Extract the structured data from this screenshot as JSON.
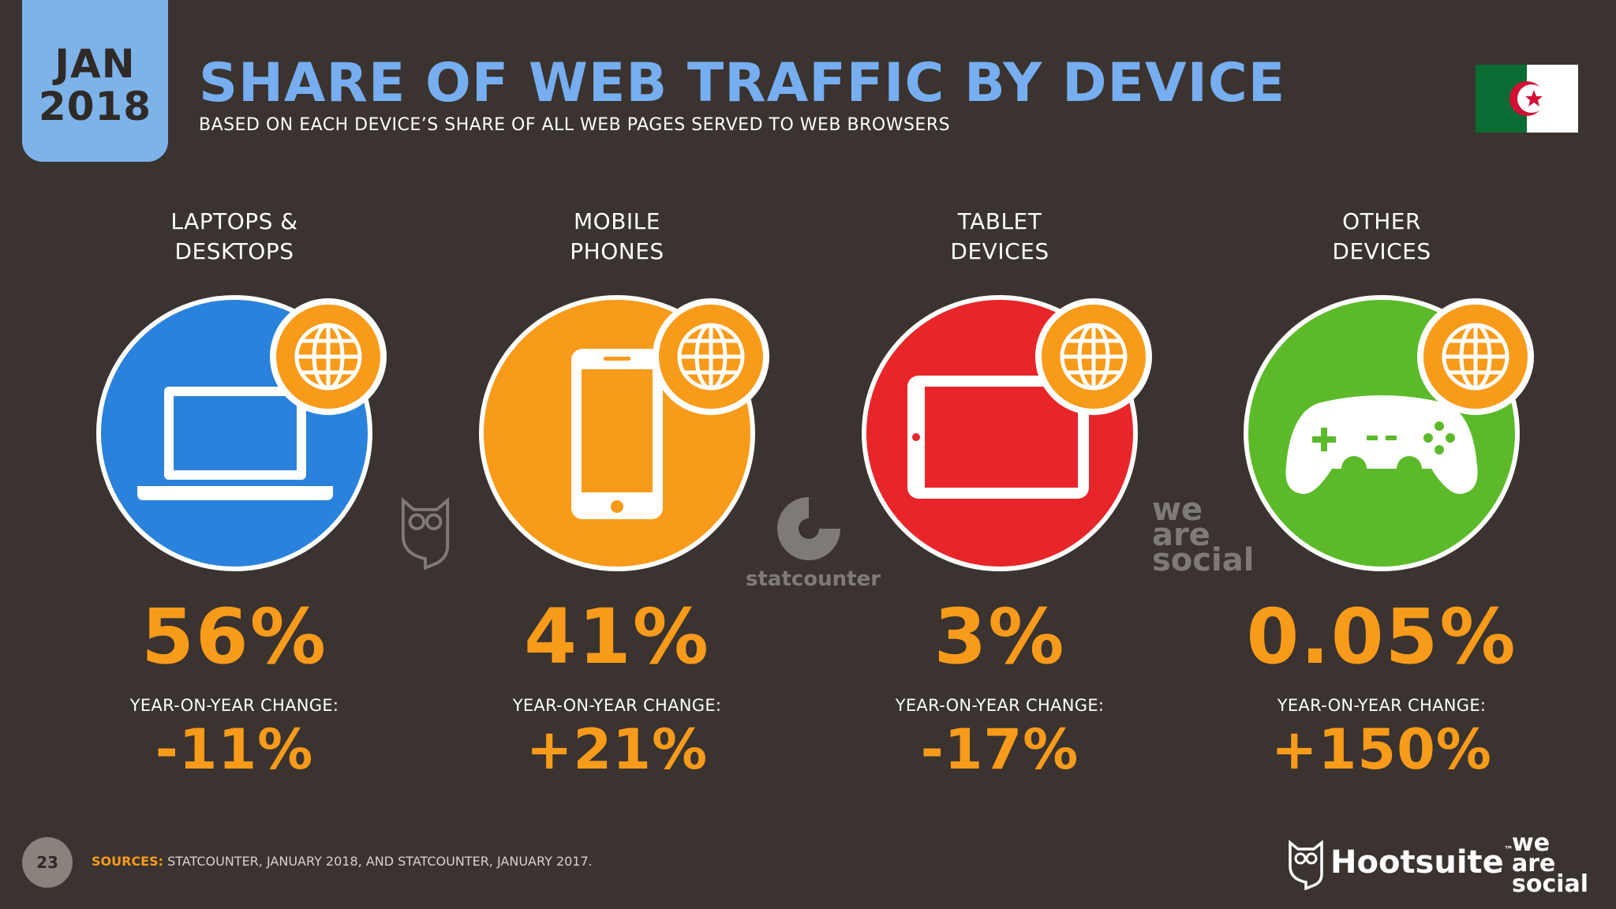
{
  "date_badge": {
    "month": "JAN",
    "year": "2018"
  },
  "header": {
    "title": "SHARE OF WEB TRAFFIC BY DEVICE",
    "subtitle": "BASED ON EACH DEVICE’S SHARE OF ALL WEB PAGES SERVED TO WEB BROWSERS",
    "flag": "algeria-flag-icon"
  },
  "colors": {
    "background": "#3a3330",
    "title": "#76aef0",
    "value": "#f89b1a",
    "laptop": "#2a82dc",
    "mobile": "#f89b1a",
    "tablet": "#e8262a",
    "other": "#5cba2a"
  },
  "devices": [
    {
      "label_line1": "LAPTOPS &",
      "label_line2": "DESKTOPS",
      "icon": "laptop-icon",
      "share": "56%",
      "yoy_label": "YEAR-ON-YEAR CHANGE:",
      "yoy": "-11%"
    },
    {
      "label_line1": "MOBILE",
      "label_line2": "PHONES",
      "icon": "mobile-phone-icon",
      "share": "41%",
      "yoy_label": "YEAR-ON-YEAR CHANGE:",
      "yoy": "+21%"
    },
    {
      "label_line1": "TABLET",
      "label_line2": "DEVICES",
      "icon": "tablet-icon",
      "share": "3%",
      "yoy_label": "YEAR-ON-YEAR CHANGE:",
      "yoy": "-17%"
    },
    {
      "label_line1": "OTHER",
      "label_line2": "DEVICES",
      "icon": "game-controller-icon",
      "share": "0.05%",
      "yoy_label": "YEAR-ON-YEAR CHANGE:",
      "yoy": "+150%"
    }
  ],
  "watermarks": {
    "statcounter": "statcounter",
    "we": "we",
    "are": "are",
    "social": "social"
  },
  "footer": {
    "page_number": "23",
    "sources_label": "SOURCES:",
    "sources_text": " STATCOUNTER, JANUARY 2018, AND STATCOUNTER, JANUARY 2017.",
    "brand": "Hootsuite",
    "brand_tm": "™",
    "was_line1": "we",
    "was_line2": "are",
    "was_line3": "social"
  }
}
